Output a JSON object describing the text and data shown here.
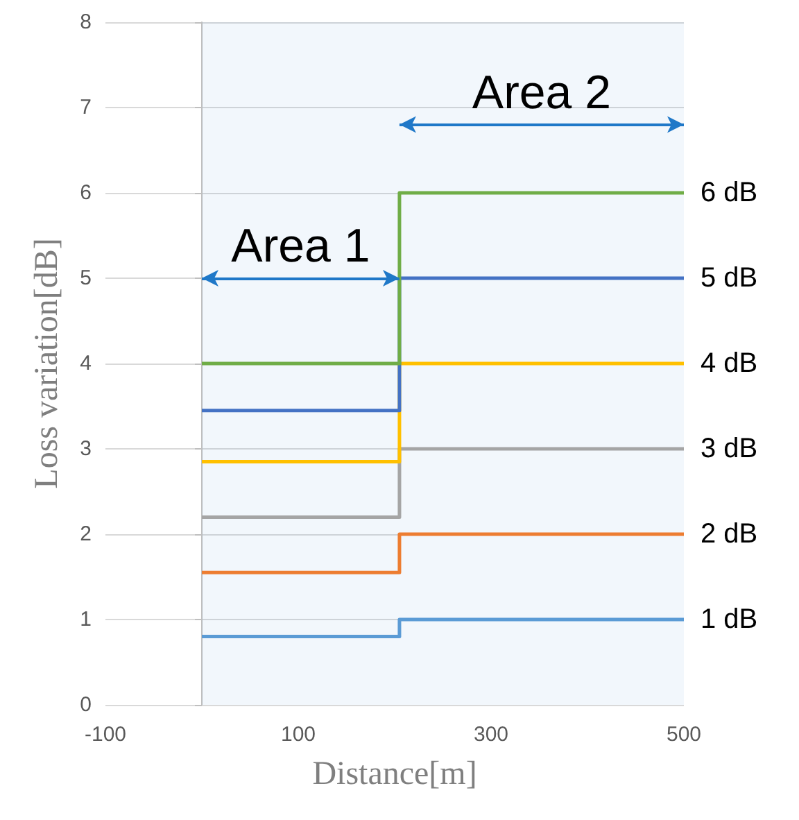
{
  "chart_data": {
    "type": "step",
    "xlabel": "Distance[m]",
    "ylabel": "Loss variation[dB]",
    "xlim": [
      -100,
      500
    ],
    "xticks": [
      -100,
      100,
      300,
      500
    ],
    "ylim": [
      0,
      8
    ],
    "yticks": [
      0,
      1,
      2,
      3,
      4,
      5,
      6,
      7,
      8
    ],
    "grid": "y",
    "legend": false,
    "marker": "none",
    "line_style": "solid",
    "series": [
      {
        "name": "1 dB",
        "color": "#5b9bd5",
        "x": [
          0,
          205,
          500
        ],
        "values": [
          0.8,
          1,
          1
        ]
      },
      {
        "name": "2 dB",
        "color": "#ed7d31",
        "x": [
          0,
          205,
          500
        ],
        "values": [
          1.55,
          2,
          2
        ]
      },
      {
        "name": "3 dB",
        "color": "#a5a5a5",
        "x": [
          0,
          205,
          500
        ],
        "values": [
          2.2,
          3,
          3
        ]
      },
      {
        "name": "4 dB",
        "color": "#ffc000",
        "x": [
          0,
          205,
          500
        ],
        "values": [
          2.85,
          4,
          4
        ]
      },
      {
        "name": "5 dB",
        "color": "#4472c4",
        "x": [
          0,
          205,
          500
        ],
        "values": [
          3.45,
          5,
          5
        ]
      },
      {
        "name": "6 dB",
        "color": "#70ad47",
        "x": [
          0,
          205,
          500
        ],
        "values": [
          4,
          6,
          6
        ]
      }
    ],
    "bands": [
      {
        "axis": "x",
        "from": 0,
        "to": 205,
        "label": "Area 1",
        "color": "#1f78c8"
      },
      {
        "axis": "x",
        "from": 205,
        "to": 500,
        "label": "Area 2",
        "color": "#1f78c8"
      }
    ]
  }
}
